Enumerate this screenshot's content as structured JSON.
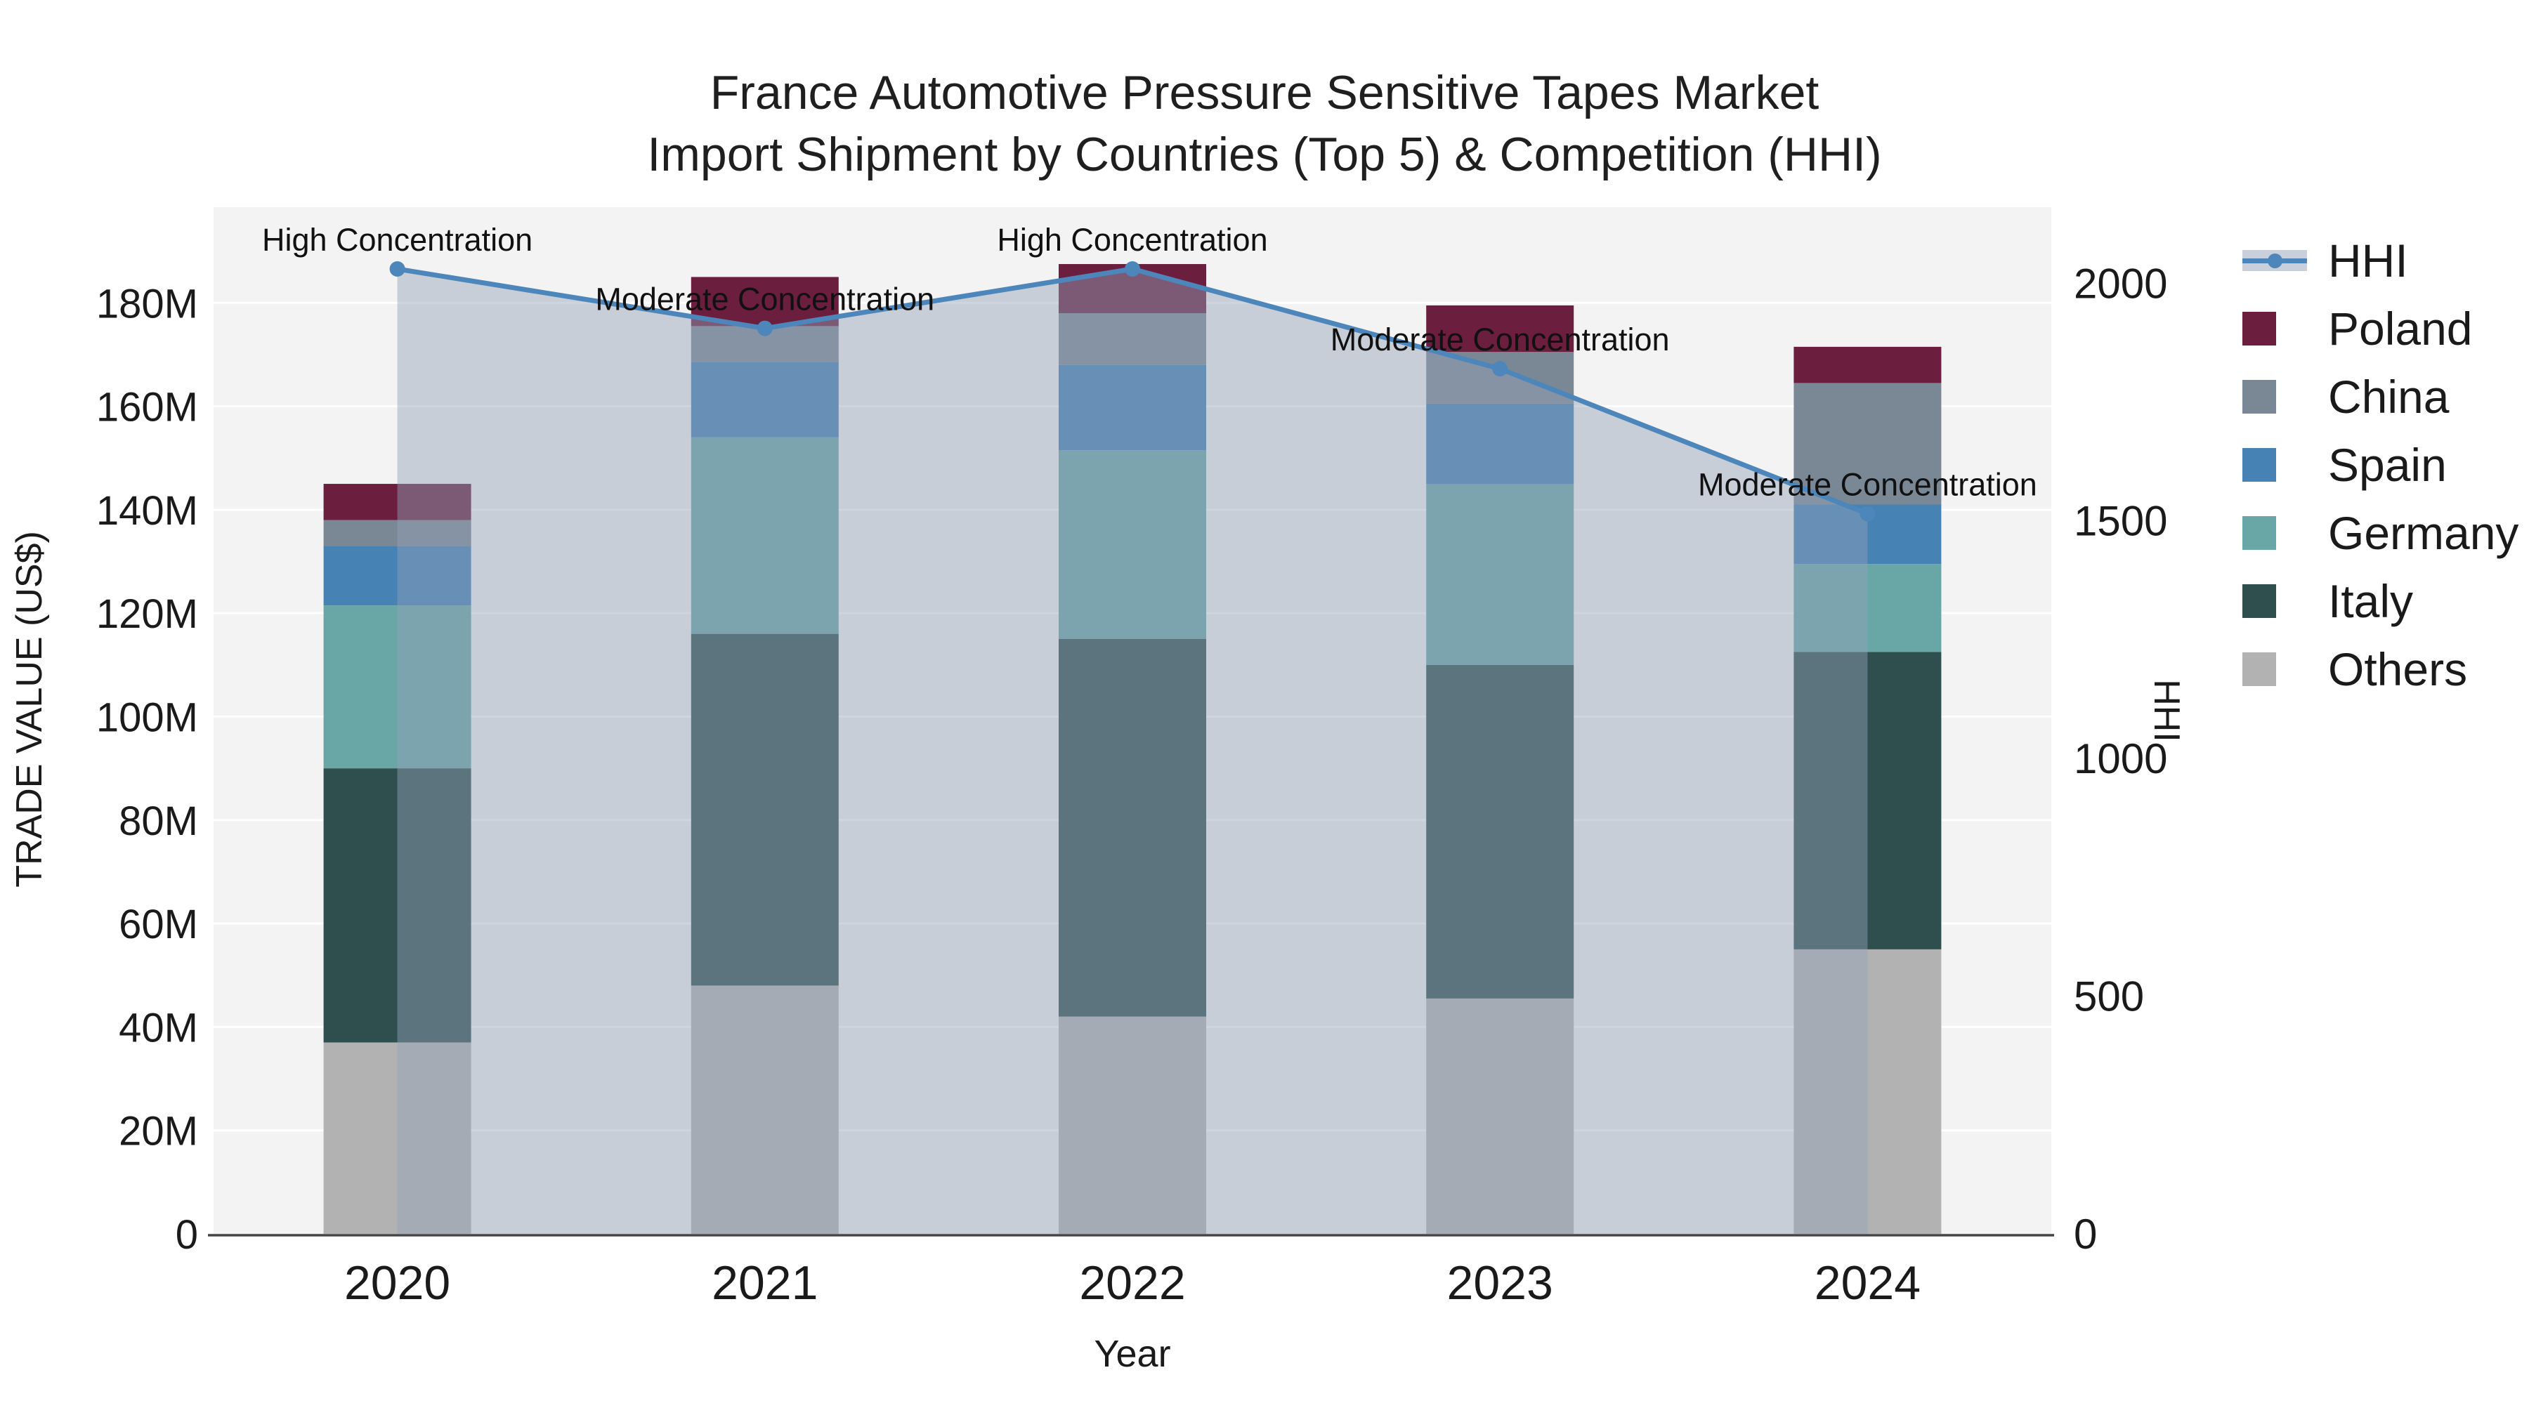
{
  "chart_data": {
    "type": "bar",
    "subtype": "stacked-bars-with-line-area-overlay",
    "title": "France Automotive Pressure Sensitive Tapes Market",
    "subtitle": "Import Shipment by Countries (Top 5) & Competition (HHI)",
    "xlabel": "Year",
    "categories": [
      "2020",
      "2021",
      "2022",
      "2023",
      "2024"
    ],
    "value_unit": "million US$",
    "series": [
      {
        "name": "Others",
        "color": "#b2b2b2",
        "values": [
          37.0,
          48.0,
          42.0,
          45.5,
          55.0
        ]
      },
      {
        "name": "Italy",
        "color": "#2f4f4f",
        "values": [
          53.0,
          68.0,
          73.0,
          64.5,
          57.5
        ]
      },
      {
        "name": "Germany",
        "color": "#68a7a6",
        "values": [
          31.5,
          38.0,
          36.5,
          35.0,
          17.0
        ]
      },
      {
        "name": "Spain",
        "color": "#4682b4",
        "values": [
          11.5,
          14.5,
          16.5,
          15.5,
          11.5
        ]
      },
      {
        "name": "China",
        "color": "#7a8896",
        "values": [
          5.0,
          7.0,
          10.0,
          10.0,
          23.5
        ]
      },
      {
        "name": "Poland",
        "color": "#6b1e3e",
        "values": [
          7.0,
          9.5,
          9.5,
          9.0,
          7.0
        ]
      }
    ],
    "stack_totals": [
      145.0,
      185.0,
      187.5,
      179.5,
      171.5
    ],
    "line_series": {
      "name": "HHI",
      "axis": "right",
      "color": "#4d86ba",
      "area_fill": "rgba(146,161,184,0.45)",
      "values": [
        2030,
        1905,
        2030,
        1820,
        1515
      ]
    },
    "annotations": [
      {
        "year": "2020",
        "text": "High Concentration"
      },
      {
        "year": "2021",
        "text": "Moderate Concentration"
      },
      {
        "year": "2022",
        "text": "High Concentration"
      },
      {
        "year": "2023",
        "text": "Moderate Concentration"
      },
      {
        "year": "2024",
        "text": "Moderate Concentration"
      }
    ],
    "y_axis_left": {
      "title": "TRADE VALUE (US$)",
      "tick_values": [
        0,
        20,
        40,
        60,
        80,
        100,
        120,
        140,
        160,
        180
      ],
      "tick_labels": [
        "0",
        "20M",
        "40M",
        "60M",
        "80M",
        "100M",
        "120M",
        "140M",
        "160M",
        "180M"
      ],
      "range": [
        0,
        198.5
      ]
    },
    "y_axis_right": {
      "title": "HHI",
      "tick_values": [
        0,
        500,
        1000,
        1500,
        2000
      ],
      "tick_labels": [
        "0",
        "500",
        "1000",
        "1500",
        "2000"
      ],
      "range": [
        0,
        2160
      ]
    },
    "legend": {
      "position": "right",
      "items": [
        {
          "label": "HHI",
          "kind": "line"
        },
        {
          "label": "Poland",
          "kind": "square"
        },
        {
          "label": "China",
          "kind": "square"
        },
        {
          "label": "Spain",
          "kind": "square"
        },
        {
          "label": "Germany",
          "kind": "square"
        },
        {
          "label": "Italy",
          "kind": "square"
        },
        {
          "label": "Others",
          "kind": "square"
        }
      ]
    },
    "colors": {
      "plot_background": "#f3f3f3",
      "gridline": "#ffffff",
      "axis_line": "#444444",
      "text": "#1a1a1a",
      "hhi_legend_band": "#c9d0db"
    },
    "grid": true
  }
}
